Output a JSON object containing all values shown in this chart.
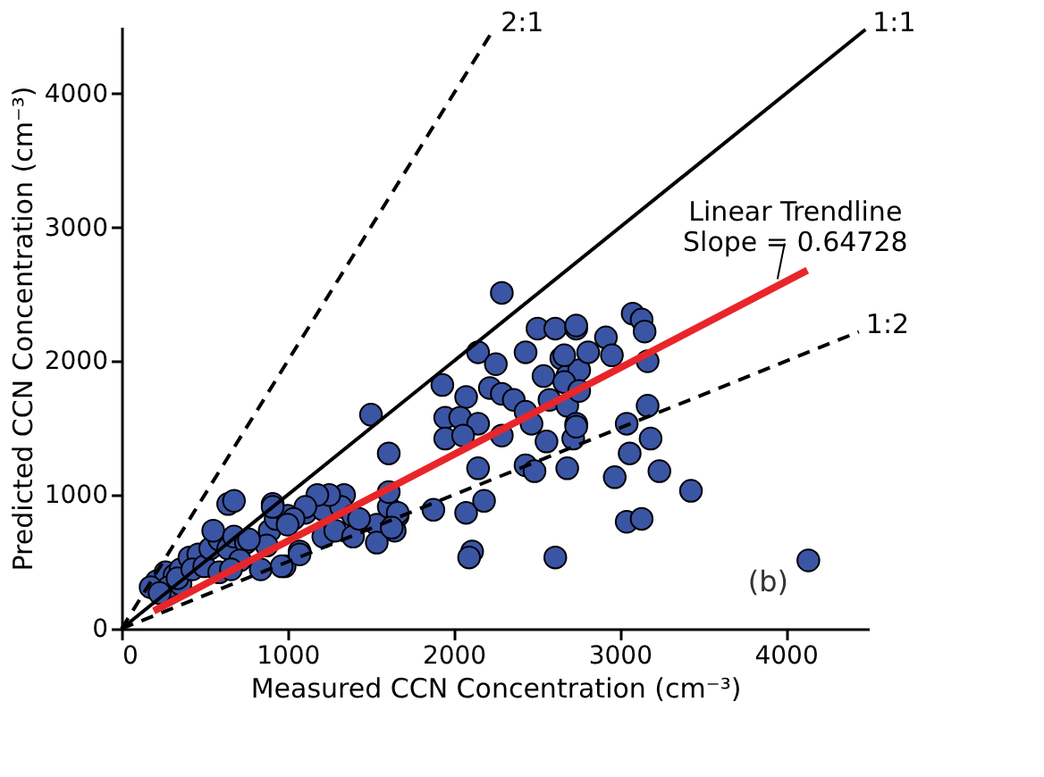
{
  "chart_data": {
    "type": "scatter",
    "xlabel": "Measured CCN Concentration (cm⁻³)",
    "ylabel": "Predicted CCN Concentration (cm⁻³)",
    "xlim": [
      0,
      4500
    ],
    "ylim": [
      0,
      4500
    ],
    "xticks": [
      0,
      1000,
      2000,
      3000,
      4000
    ],
    "yticks": [
      0,
      1000,
      2000,
      3000,
      4000
    ],
    "grid": false,
    "marker": "circle",
    "annotations": [
      {
        "text": "Linear Trendline\nSlope = 0.64728",
        "x": 3950,
        "y": 2560
      },
      "(b)"
    ],
    "series": [
      {
        "color": "#3b55a5",
        "x": [
          212,
          265,
          319,
          355,
          409,
          462,
          283,
          355,
          175,
          229,
          337,
          426,
          498,
          534,
          588,
          552,
          642,
          677,
          749,
          713,
          588,
          659,
          838,
          892,
          982,
          1072,
          874,
          928,
          910,
          642,
          1000,
          1107,
          1215,
          1340,
          1322,
          1394,
          1537,
          1609,
          1663,
          1645,
          1878,
          1609,
          1609,
          2290,
          1502,
          1932,
          2147,
          2254,
          2075,
          2218,
          2290,
          2362,
          1949,
          2039,
          2147,
          1949,
          2057,
          2290,
          2433,
          2469,
          2505,
          2612,
          2738,
          2433,
          2541,
          2648,
          2684,
          2756,
          2577,
          2684,
          2738,
          2433,
          2487,
          2559,
          2720,
          2684,
          2147,
          2075,
          2183,
          2111,
          2093,
          2612,
          1663,
          1537,
          1627,
          1251,
          1179,
          1107,
          910,
          1036,
          1000,
          767,
          964,
          1072,
          1215,
          1287,
          1394,
          1430,
          677,
          2738,
          3078,
          3132,
          3150,
          2917,
          2810,
          2953,
          3168,
          2666,
          2666,
          2756,
          3168,
          3042,
          3186,
          2738,
          3060,
          2970,
          3239,
          3429,
          3042,
          3132,
          4136
        ],
        "values": [
          356,
          422,
          400,
          444,
          533,
          556,
          311,
          333,
          311,
          267,
          378,
          444,
          467,
          600,
          667,
          733,
          600,
          689,
          644,
          511,
          422,
          444,
          444,
          733,
          467,
          578,
          622,
          822,
          933,
          933,
          844,
          867,
          889,
          1000,
          911,
          844,
          778,
          911,
          844,
          733,
          889,
          1022,
          1311,
          2511,
          1600,
          1822,
          2067,
          1978,
          1733,
          1800,
          1756,
          1711,
          1578,
          1578,
          1533,
          1422,
          1444,
          1444,
          1622,
          1533,
          2244,
          2244,
          2244,
          2067,
          1889,
          2022,
          1889,
          1933,
          1711,
          1667,
          1533,
          1222,
          1178,
          1400,
          1422,
          1200,
          1200,
          867,
          956,
          578,
          533,
          533,
          867,
          644,
          756,
          1000,
          1000,
          911,
          911,
          822,
          778,
          667,
          467,
          556,
          689,
          733,
          689,
          822,
          956,
          2267,
          2356,
          2311,
          2222,
          2178,
          2067,
          2044,
          2000,
          2044,
          1844,
          1778,
          1667,
          1533,
          1422,
          1511,
          1311,
          1133,
          1178,
          1031,
          800,
          822,
          511
        ]
      },
      {
        "type": "line",
        "name": "2:1",
        "color": "#000000",
        "line_style": "dashed",
        "marker": "none",
        "x": [
          0,
          2240
        ],
        "values": [
          0,
          4480
        ]
      },
      {
        "type": "line",
        "name": "1:1",
        "color": "#000000",
        "line_style": "solid",
        "marker": "none",
        "x": [
          0,
          4480
        ],
        "values": [
          0,
          4480
        ]
      },
      {
        "type": "line",
        "name": "1:2",
        "color": "#000000",
        "line_style": "dashed",
        "marker": "none",
        "x": [
          0,
          4440
        ],
        "values": [
          0,
          2220
        ]
      },
      {
        "type": "line",
        "color": "#e8262a",
        "line_style": "solid",
        "marker": "none",
        "x": [
          194,
          4130
        ],
        "values": [
          133,
          2680
        ]
      }
    ]
  }
}
